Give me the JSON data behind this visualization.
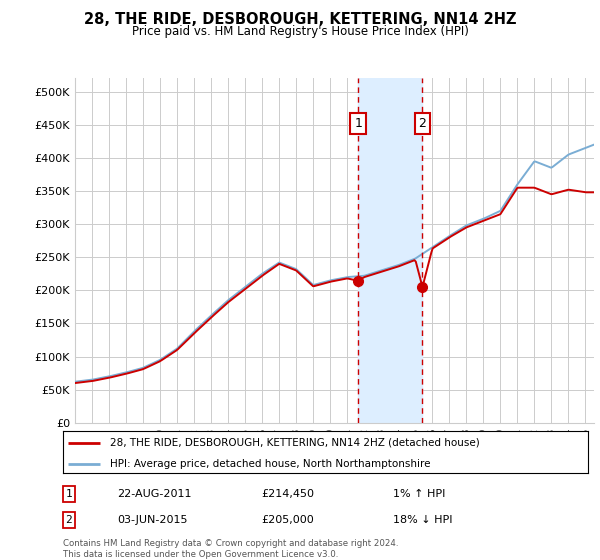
{
  "title": "28, THE RIDE, DESBOROUGH, KETTERING, NN14 2HZ",
  "subtitle": "Price paid vs. HM Land Registry's House Price Index (HPI)",
  "legend_line1": "28, THE RIDE, DESBOROUGH, KETTERING, NN14 2HZ (detached house)",
  "legend_line2": "HPI: Average price, detached house, North Northamptonshire",
  "footer": "Contains HM Land Registry data © Crown copyright and database right 2024.\nThis data is licensed under the Open Government Licence v3.0.",
  "marker1_date": "22-AUG-2011",
  "marker1_price": "£214,450",
  "marker1_hpi": "1% ↑ HPI",
  "marker2_date": "03-JUN-2015",
  "marker2_price": "£205,000",
  "marker2_hpi": "18% ↓ HPI",
  "red_color": "#cc0000",
  "blue_color": "#7aadd4",
  "background_color": "#ffffff",
  "grid_color": "#cccccc",
  "shade_color": "#ddeeff",
  "ylim": [
    0,
    520000
  ],
  "yticks": [
    0,
    50000,
    100000,
    150000,
    200000,
    250000,
    300000,
    350000,
    400000,
    450000,
    500000
  ],
  "start_year": 1995,
  "end_year": 2025,
  "marker1_year": 2011.64,
  "marker2_year": 2015.42,
  "marker1_price_val": 214450,
  "marker2_price_val": 205000
}
